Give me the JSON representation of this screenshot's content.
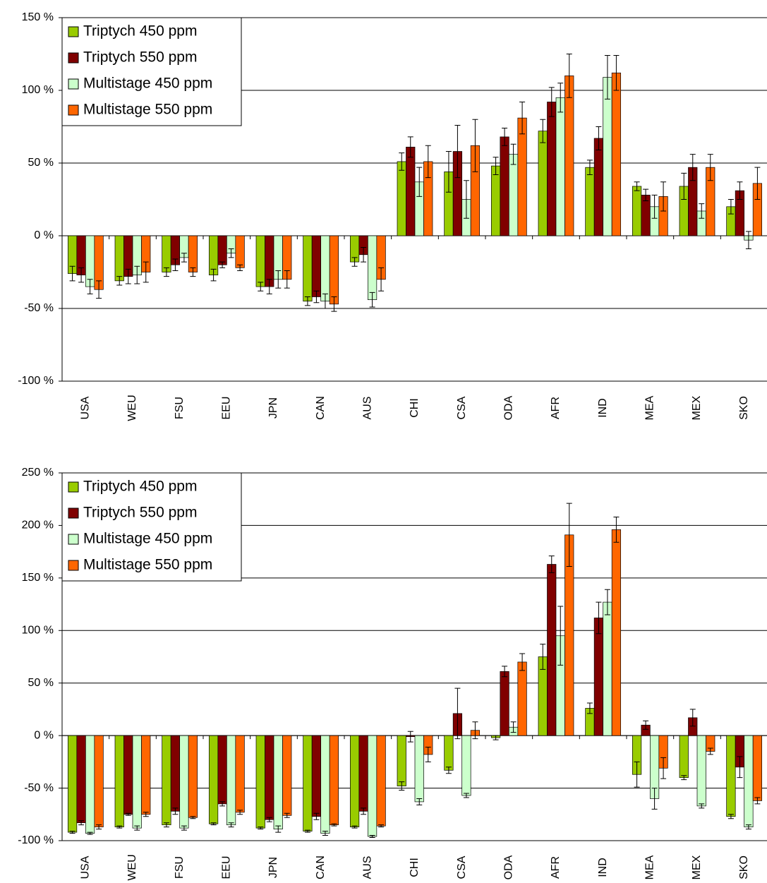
{
  "chart_data": [
    {
      "type": "bar",
      "categories": [
        "USA",
        "WEU",
        "FSU",
        "EEU",
        "JPN",
        "CAN",
        "AUS",
        "CHI",
        "CSA",
        "ODA",
        "AFR",
        "IND",
        "MEA",
        "MEX",
        "SKO"
      ],
      "series": [
        {
          "name": "Triptych 450 ppm",
          "color": "#99cc00",
          "values": [
            -26,
            -31,
            -25,
            -27,
            -35,
            -45,
            -18,
            51,
            44,
            48,
            72,
            47,
            34,
            34,
            20
          ],
          "errors": [
            5,
            3,
            3,
            4,
            3,
            3,
            3,
            6,
            14,
            6,
            8,
            5,
            3,
            9,
            5
          ]
        },
        {
          "name": "Triptych 550 ppm",
          "color": "#800000",
          "values": [
            -27,
            -28,
            -20,
            -20,
            -35,
            -42,
            -13,
            61,
            58,
            68,
            92,
            67,
            28,
            47,
            31
          ],
          "errors": [
            5,
            5,
            4,
            2,
            5,
            4,
            5,
            7,
            18,
            6,
            10,
            8,
            4,
            9,
            6
          ]
        },
        {
          "name": "Multistage 450 ppm",
          "color": "#ccffcc",
          "values": [
            -35,
            -27,
            -15,
            -12,
            -30,
            -45,
            -44,
            37,
            25,
            56,
            95,
            109,
            20,
            17,
            -3
          ],
          "errors": [
            5,
            6,
            3,
            3,
            6,
            5,
            5,
            10,
            13,
            7,
            10,
            15,
            8,
            5,
            6
          ]
        },
        {
          "name": "Multistage 550 ppm",
          "color": "#ff6600",
          "values": [
            -37,
            -25,
            -25,
            -22,
            -30,
            -47,
            -30,
            51,
            62,
            81,
            110,
            112,
            27,
            47,
            36
          ],
          "errors": [
            6,
            7,
            3,
            2,
            6,
            5,
            8,
            11,
            18,
            11,
            15,
            12,
            10,
            9,
            11
          ]
        }
      ],
      "ylim": [
        -100,
        150
      ],
      "yticks": [
        {
          "value": -100,
          "label": "-100 %"
        },
        {
          "value": -50,
          "label": "-50 %"
        },
        {
          "value": 0,
          "label": "0 %"
        },
        {
          "value": 50,
          "label": "50 %"
        },
        {
          "value": 100,
          "label": "100 %"
        },
        {
          "value": 150,
          "label": "150 %"
        }
      ],
      "grid": true,
      "legend": "upper left"
    },
    {
      "type": "bar",
      "categories": [
        "USA",
        "WEU",
        "FSU",
        "EEU",
        "JPN",
        "CAN",
        "AUS",
        "CHI",
        "CSA",
        "ODA",
        "AFR",
        "IND",
        "MEA",
        "MEX",
        "SKO"
      ],
      "series": [
        {
          "name": "Triptych 450 ppm",
          "color": "#99cc00",
          "values": [
            -92,
            -87,
            -85,
            -84,
            -88,
            -91,
            -87,
            -48,
            -33,
            -2,
            75,
            26,
            -37,
            -40,
            -77
          ],
          "errors": [
            1,
            1,
            2,
            1,
            1,
            1,
            1,
            4,
            3,
            2,
            12,
            5,
            12,
            2,
            2
          ]
        },
        {
          "name": "Triptych 550 ppm",
          "color": "#800000",
          "values": [
            -83,
            -75,
            -72,
            -65,
            -80,
            -77,
            -72,
            -1,
            21,
            61,
            163,
            112,
            10,
            17,
            -30
          ],
          "errors": [
            2,
            1,
            3,
            2,
            2,
            3,
            3,
            5,
            24,
            5,
            8,
            15,
            4,
            8,
            10
          ]
        },
        {
          "name": "Multistage 450 ppm",
          "color": "#ccffcc",
          "values": [
            -93,
            -88,
            -88,
            -85,
            -89,
            -93,
            -96,
            -63,
            -57,
            8,
            95,
            127,
            -60,
            -67,
            -87
          ],
          "errors": [
            1,
            2,
            2,
            2,
            3,
            2,
            1,
            3,
            2,
            5,
            28,
            12,
            10,
            2,
            2
          ]
        },
        {
          "name": "Multistage 550 ppm",
          "color": "#ff6600",
          "values": [
            -87,
            -75,
            -78,
            -73,
            -76,
            -85,
            -86,
            -18,
            5,
            70,
            191,
            196,
            -31,
            -15,
            -62
          ],
          "errors": [
            2,
            2,
            1,
            2,
            2,
            1,
            1,
            7,
            8,
            8,
            30,
            12,
            10,
            3,
            3
          ]
        }
      ],
      "ylim": [
        -100,
        250
      ],
      "yticks": [
        {
          "value": -100,
          "label": "-100 %"
        },
        {
          "value": -50,
          "label": "-50 %"
        },
        {
          "value": 0,
          "label": "0 %"
        },
        {
          "value": 50,
          "label": "50 %"
        },
        {
          "value": 100,
          "label": "100 %"
        },
        {
          "value": 150,
          "label": "150 %"
        },
        {
          "value": 200,
          "label": "200 %"
        },
        {
          "value": 250,
          "label": "250 %"
        }
      ],
      "grid": true,
      "legend": "upper left"
    }
  ]
}
